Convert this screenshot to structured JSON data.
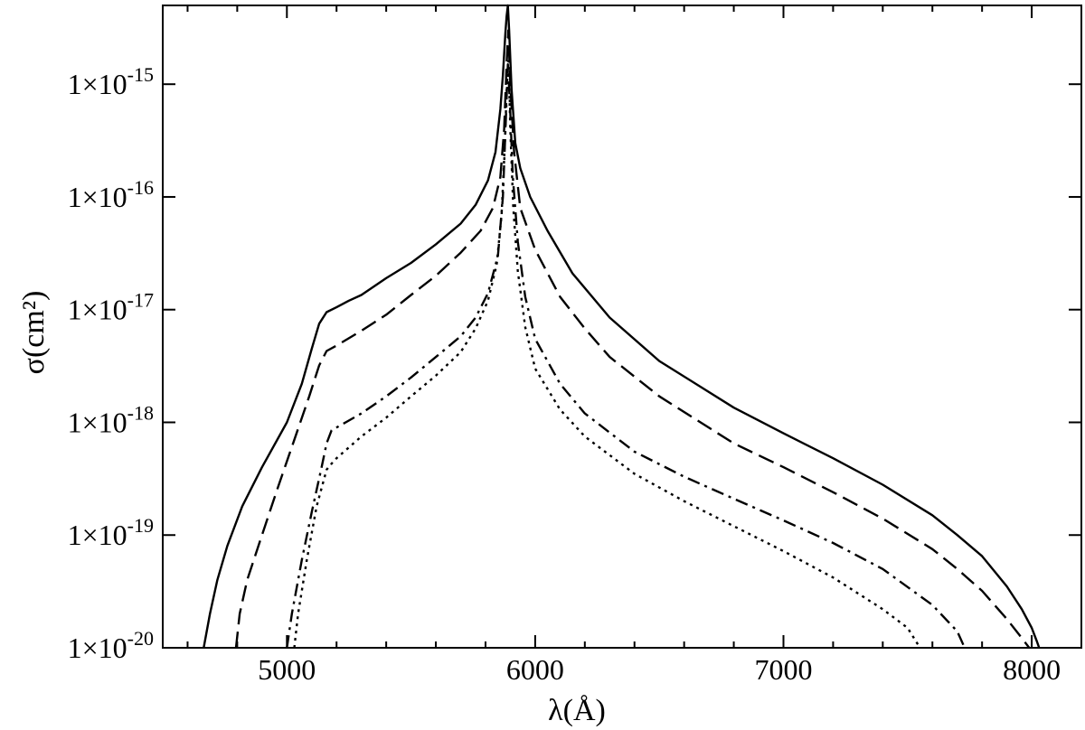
{
  "chart_data": {
    "type": "line",
    "xlabel": "λ(Å)",
    "ylabel": "σ(cm²)",
    "xlim": [
      4500,
      8200
    ],
    "ylim": [
      1e-20,
      5e-15
    ],
    "yscale": "log",
    "grid": false,
    "x_ticks": [
      5000,
      6000,
      7000,
      8000
    ],
    "x_tick_labels": [
      "5000",
      "6000",
      "7000",
      "8000"
    ],
    "x_minor_step": 200,
    "y_ticks": [
      1e-20,
      1e-19,
      1e-18,
      1e-17,
      1e-16,
      1e-15
    ],
    "y_tick_labels": [
      {
        "base": "1×10",
        "exp": "-20"
      },
      {
        "base": "1×10",
        "exp": "-19"
      },
      {
        "base": "1×10",
        "exp": "-18"
      },
      {
        "base": "1×10",
        "exp": "-17"
      },
      {
        "base": "1×10",
        "exp": "-16"
      },
      {
        "base": "1×10",
        "exp": "-15"
      }
    ],
    "series": [
      {
        "style": "solid",
        "x": [
          4665,
          4690,
          4720,
          4760,
          4820,
          4900,
          5000,
          5060,
          5100,
          5130,
          5160,
          5200,
          5250,
          5300,
          5400,
          5500,
          5600,
          5700,
          5760,
          5810,
          5840,
          5860,
          5870,
          5880,
          5885,
          5890,
          5895,
          5905,
          5920,
          5940,
          5980,
          6050,
          6150,
          6300,
          6500,
          6800,
          7000,
          7200,
          7400,
          7600,
          7700,
          7800,
          7900,
          7960,
          8000,
          8020,
          8030
        ],
        "y": [
          1e-20,
          2e-20,
          4e-20,
          8e-20,
          1.8e-19,
          4e-19,
          1e-18,
          2.2e-18,
          4.5e-18,
          7.5e-18,
          9.5e-18,
          1.05e-17,
          1.2e-17,
          1.35e-17,
          1.9e-17,
          2.6e-17,
          3.8e-17,
          5.8e-17,
          8.5e-17,
          1.4e-16,
          2.5e-16,
          6e-16,
          1.2e-15,
          2.8e-15,
          4e-15,
          5e-15,
          3e-15,
          9e-16,
          3e-16,
          1.8e-16,
          1e-16,
          5e-17,
          2.1e-17,
          8.5e-18,
          3.5e-18,
          1.35e-18,
          8e-19,
          4.8e-19,
          2.8e-19,
          1.5e-19,
          1e-19,
          6.5e-20,
          3.5e-20,
          2.2e-20,
          1.5e-20,
          1.15e-20,
          1e-20
        ]
      },
      {
        "style": "dashed",
        "x": [
          4795,
          4810,
          4840,
          4900,
          4960,
          5030,
          5090,
          5130,
          5160,
          5200,
          5300,
          5400,
          5500,
          5600,
          5700,
          5780,
          5830,
          5860,
          5875,
          5885,
          5892,
          5900,
          5915,
          5940,
          6000,
          6100,
          6200,
          6300,
          6500,
          6800,
          7000,
          7200,
          7400,
          7600,
          7700,
          7800,
          7900,
          7950,
          7990
        ],
        "y": [
          1e-20,
          2e-20,
          4e-20,
          1e-19,
          2.5e-19,
          7e-19,
          1.7e-18,
          3.2e-18,
          4.3e-18,
          4.8e-18,
          6.5e-18,
          9e-18,
          1.35e-17,
          2e-17,
          3.2e-17,
          5e-17,
          8e-17,
          1.5e-16,
          4e-16,
          1.5e-15,
          3e-15,
          1e-15,
          2.5e-16,
          8e-17,
          3.4e-17,
          1.3e-17,
          6.8e-18,
          3.8e-18,
          1.7e-18,
          6.5e-19,
          4e-19,
          2.4e-19,
          1.4e-19,
          7.5e-20,
          5e-20,
          3.2e-20,
          1.8e-20,
          1.3e-20,
          1e-20
        ]
      },
      {
        "style": "dash-dot",
        "x": [
          5000,
          5020,
          5060,
          5100,
          5140,
          5160,
          5180,
          5200,
          5300,
          5400,
          5500,
          5600,
          5700,
          5760,
          5810,
          5850,
          5870,
          5882,
          5890,
          5898,
          5910,
          5930,
          5960,
          6000,
          6100,
          6200,
          6400,
          6600,
          6800,
          7000,
          7200,
          7400,
          7600,
          7700,
          7730
        ],
        "y": [
          1e-20,
          2e-20,
          6e-20,
          1.6e-19,
          4e-19,
          6.5e-19,
          8.5e-19,
          9e-19,
          1.2e-18,
          1.7e-18,
          2.5e-18,
          3.8e-18,
          5.8e-18,
          8.5e-18,
          1.4e-17,
          3e-17,
          1e-16,
          5e-16,
          1.5e-15,
          7e-16,
          1.5e-16,
          4e-17,
          1.3e-17,
          5.5e-18,
          2.2e-18,
          1.2e-18,
          5.5e-19,
          3.3e-19,
          2.1e-19,
          1.35e-19,
          8.5e-20,
          5e-20,
          2.4e-20,
          1.4e-20,
          1e-20
        ]
      },
      {
        "style": "dotted",
        "x": [
          5030,
          5045,
          5080,
          5120,
          5160,
          5180,
          5200,
          5300,
          5400,
          5500,
          5600,
          5700,
          5760,
          5810,
          5845,
          5865,
          5878,
          5886,
          5893,
          5900,
          5912,
          5930,
          5960,
          6000,
          6100,
          6200,
          6400,
          6600,
          6800,
          7000,
          7200,
          7400,
          7500,
          7550
        ],
        "y": [
          1e-20,
          2e-20,
          6e-20,
          1.8e-19,
          3.8e-19,
          4.3e-19,
          4.8e-19,
          7.5e-19,
          1.1e-18,
          1.7e-18,
          2.6e-18,
          4.2e-18,
          6.8e-18,
          1.2e-17,
          2.5e-17,
          7e-17,
          3e-16,
          1e-15,
          1.6e-15,
          4e-16,
          8e-17,
          2.2e-17,
          7e-18,
          3e-18,
          1.3e-18,
          7.5e-19,
          3.5e-19,
          2e-19,
          1.2e-19,
          7.2e-20,
          4.2e-20,
          2.2e-20,
          1.5e-20,
          1e-20
        ]
      }
    ]
  }
}
